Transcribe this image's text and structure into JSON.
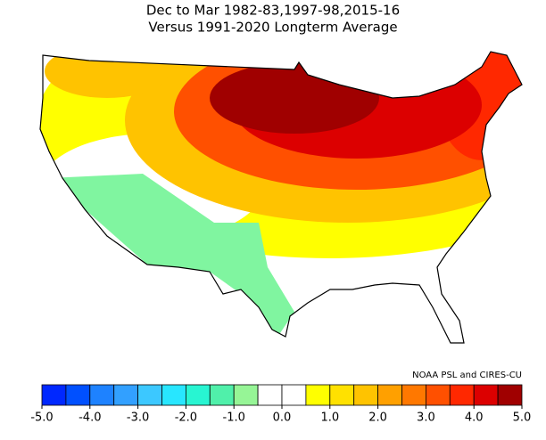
{
  "title": "Dec to Mar  1982-83,1997-98,2015-16",
  "subtitle": "Versus 1991-2020 Longterm Average",
  "credit": "NOAA PSL and CIRES-CU",
  "colorbar": {
    "bounds": [
      -5,
      -4.5,
      -4,
      -3.5,
      -3,
      -2.5,
      -2,
      -1.5,
      -1,
      -0.5,
      0,
      0.5,
      1,
      1.5,
      2,
      2.5,
      3,
      3.5,
      4,
      4.5,
      5
    ],
    "colors": [
      "#0028ff",
      "#0050ff",
      "#1e82ff",
      "#32a0ff",
      "#3cc8ff",
      "#28e6ff",
      "#28f5d2",
      "#50f0aa",
      "#96f596",
      "#ffffff",
      "#ffffff",
      "#ffff00",
      "#ffe100",
      "#ffc300",
      "#ffa000",
      "#ff7800",
      "#ff5000",
      "#ff2800",
      "#dc0000",
      "#a00000"
    ],
    "ticks": [
      {
        "value": -5,
        "label": "-5.0"
      },
      {
        "value": -4,
        "label": "-4.0"
      },
      {
        "value": -3,
        "label": "-3.0"
      },
      {
        "value": -2,
        "label": "-2.0"
      },
      {
        "value": -1,
        "label": "-1.0"
      },
      {
        "value": 0,
        "label": "0.0"
      },
      {
        "value": 1,
        "label": "1.0"
      },
      {
        "value": 2,
        "label": "2.0"
      },
      {
        "value": 3,
        "label": "3.0"
      },
      {
        "value": 4,
        "label": "4.0"
      },
      {
        "value": 5,
        "label": "5.0"
      }
    ]
  }
}
